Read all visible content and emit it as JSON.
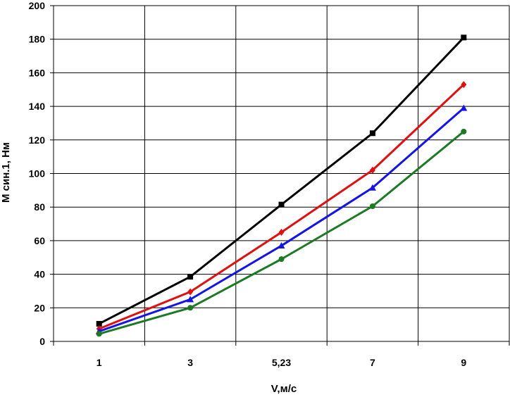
{
  "chart_data": {
    "type": "line",
    "categories": [
      "1",
      "3",
      "5,23",
      "7",
      "9"
    ],
    "xlabel": "V,м/с",
    "ylabel": "M син.1, Нм",
    "ylim": [
      0,
      200
    ],
    "yticks": [
      0,
      20,
      40,
      60,
      80,
      100,
      120,
      140,
      160,
      180,
      200
    ],
    "grid": true,
    "legend": "none",
    "series": [
      {
        "color": "#000000",
        "marker": "square",
        "values": [
          10.5,
          38.5,
          81.5,
          124,
          181
        ]
      },
      {
        "color": "#e01010",
        "marker": "diamond",
        "values": [
          7.5,
          29.5,
          65,
          102,
          153
        ]
      },
      {
        "color": "#1414e6",
        "marker": "triangle",
        "values": [
          6,
          25,
          57,
          91.5,
          139
        ]
      },
      {
        "color": "#1c7a24",
        "marker": "circle",
        "values": [
          4.5,
          20,
          49,
          80.5,
          125
        ]
      }
    ]
  }
}
